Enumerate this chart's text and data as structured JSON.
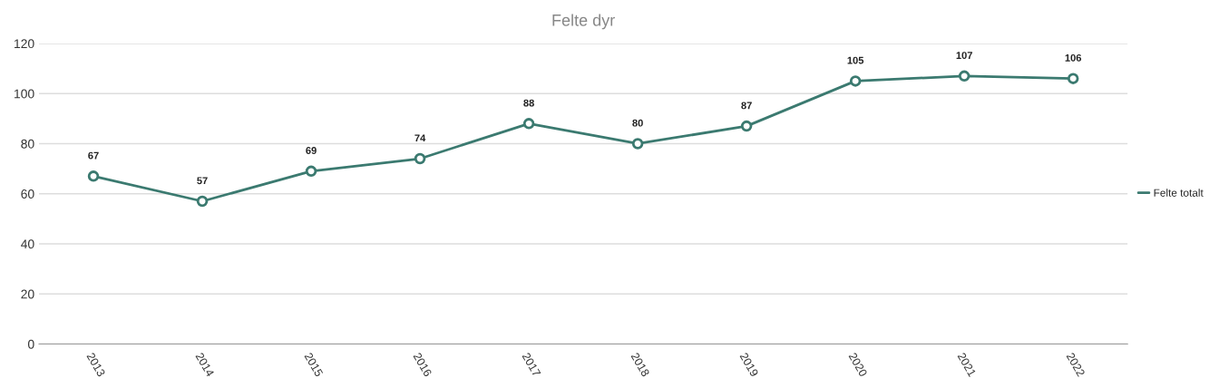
{
  "chart_data": {
    "type": "line",
    "title": "Felte dyr",
    "categories": [
      "2013",
      "2014",
      "2015",
      "2016",
      "2017",
      "2018",
      "2019",
      "2020",
      "2021",
      "2022"
    ],
    "series": [
      {
        "name": "Felte totalt",
        "color": "#3b7a70",
        "values": [
          67,
          57,
          69,
          74,
          88,
          80,
          87,
          105,
          107,
          106
        ]
      }
    ],
    "ylim": [
      0,
      120
    ],
    "yticks": [
      0,
      20,
      40,
      60,
      80,
      100,
      120
    ],
    "grid": "y",
    "legend": "right",
    "marker": "circle",
    "data_labels": true
  }
}
